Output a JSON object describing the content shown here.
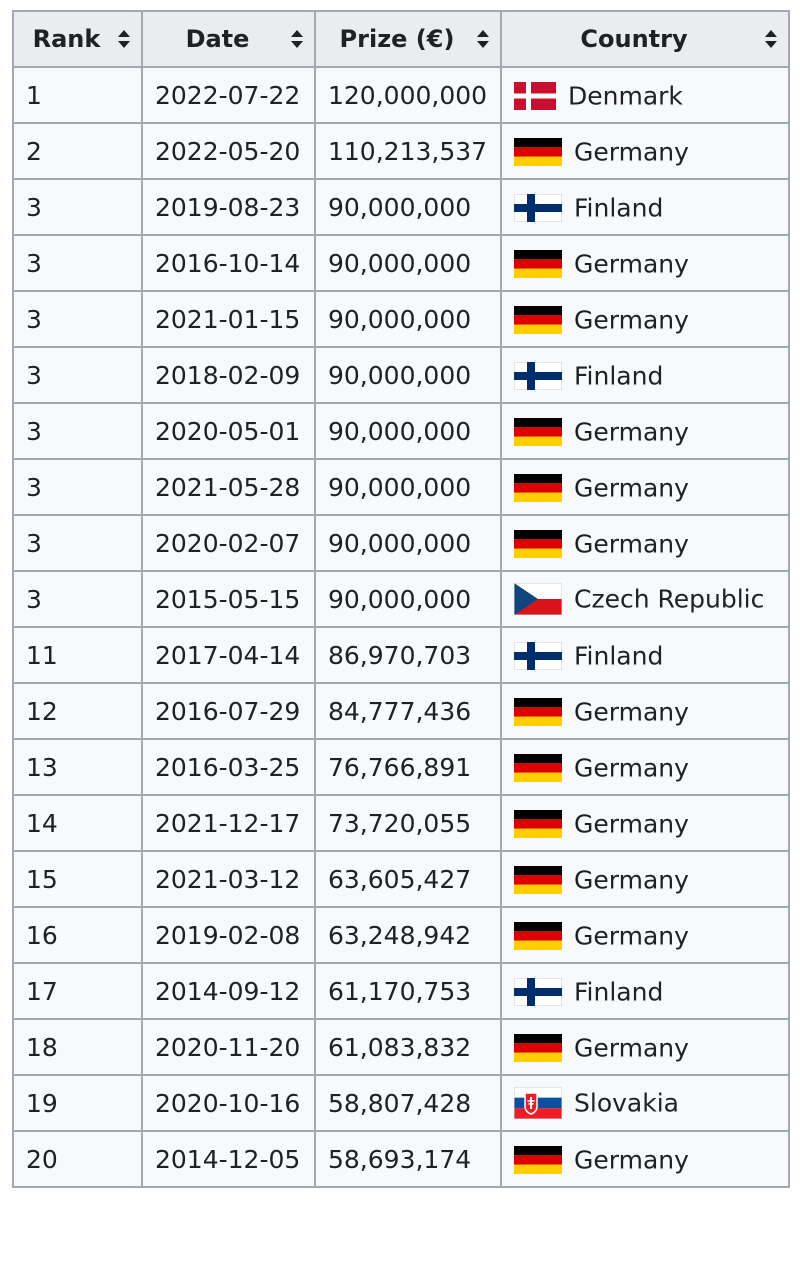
{
  "table": {
    "headers": [
      "Rank",
      "Date",
      "Prize (€)",
      "Country"
    ],
    "rows": [
      {
        "rank": "1",
        "date": "2022-07-22",
        "prize": "120,000,000",
        "country": "Denmark",
        "flag": "denmark-flag"
      },
      {
        "rank": "2",
        "date": "2022-05-20",
        "prize": "110,213,537",
        "country": "Germany",
        "flag": "germany-flag"
      },
      {
        "rank": "3",
        "date": "2019-08-23",
        "prize": "90,000,000",
        "country": "Finland",
        "flag": "finland-flag"
      },
      {
        "rank": "3",
        "date": "2016-10-14",
        "prize": "90,000,000",
        "country": "Germany",
        "flag": "germany-flag"
      },
      {
        "rank": "3",
        "date": "2021-01-15",
        "prize": "90,000,000",
        "country": "Germany",
        "flag": "germany-flag"
      },
      {
        "rank": "3",
        "date": "2018-02-09",
        "prize": "90,000,000",
        "country": "Finland",
        "flag": "finland-flag"
      },
      {
        "rank": "3",
        "date": "2020-05-01",
        "prize": "90,000,000",
        "country": "Germany",
        "flag": "germany-flag"
      },
      {
        "rank": "3",
        "date": "2021-05-28",
        "prize": "90,000,000",
        "country": "Germany",
        "flag": "germany-flag"
      },
      {
        "rank": "3",
        "date": "2020-02-07",
        "prize": "90,000,000",
        "country": "Germany",
        "flag": "germany-flag"
      },
      {
        "rank": "3",
        "date": "2015-05-15",
        "prize": "90,000,000",
        "country": "Czech Republic",
        "flag": "czech-republic-flag"
      },
      {
        "rank": "11",
        "date": "2017-04-14",
        "prize": "86,970,703",
        "country": "Finland",
        "flag": "finland-flag"
      },
      {
        "rank": "12",
        "date": "2016-07-29",
        "prize": "84,777,436",
        "country": "Germany",
        "flag": "germany-flag"
      },
      {
        "rank": "13",
        "date": "2016-03-25",
        "prize": "76,766,891",
        "country": "Germany",
        "flag": "germany-flag"
      },
      {
        "rank": "14",
        "date": "2021-12-17",
        "prize": "73,720,055",
        "country": "Germany",
        "flag": "germany-flag"
      },
      {
        "rank": "15",
        "date": "2021-03-12",
        "prize": "63,605,427",
        "country": "Germany",
        "flag": "germany-flag"
      },
      {
        "rank": "16",
        "date": "2019-02-08",
        "prize": "63,248,942",
        "country": "Germany",
        "flag": "germany-flag"
      },
      {
        "rank": "17",
        "date": "2014-09-12",
        "prize": "61,170,753",
        "country": "Finland",
        "flag": "finland-flag"
      },
      {
        "rank": "18",
        "date": "2020-11-20",
        "prize": "61,083,832",
        "country": "Germany",
        "flag": "germany-flag"
      },
      {
        "rank": "19",
        "date": "2020-10-16",
        "prize": "58,807,428",
        "country": "Slovakia",
        "flag": "slovakia-flag"
      },
      {
        "rank": "20",
        "date": "2014-12-05",
        "prize": "58,693,174",
        "country": "Germany",
        "flag": "germany-flag"
      }
    ]
  },
  "icons": {
    "sort": "sort-up-down-icon"
  }
}
